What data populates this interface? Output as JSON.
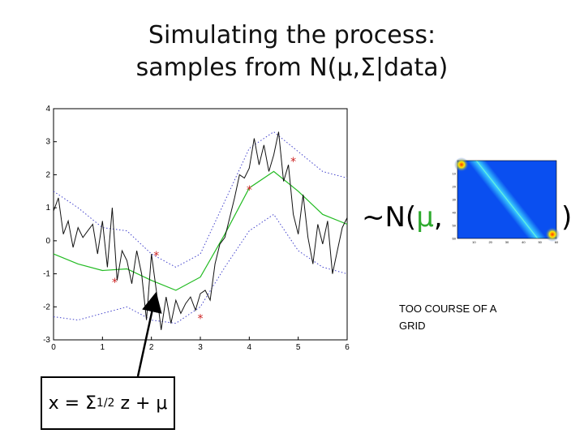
{
  "title": {
    "line1": "Simulating the process:",
    "line2": "samples from N(μ,Σ|data)"
  },
  "distribution": {
    "prefix": "~N(",
    "mu": "μ",
    "comma": ",",
    "close": ")"
  },
  "note": "TOO COURSE OF A GRID",
  "formula": {
    "lhs": "x = Σ",
    "exp": "1/2",
    "rhs": " z + μ"
  },
  "colors": {
    "mean": "#22bb22",
    "bounds": "#4444cc",
    "sample": "#111111",
    "points": "#cc2222",
    "mu_text": "#2eaa2e"
  },
  "chart_data": [
    {
      "type": "line",
      "xlim": [
        0,
        6
      ],
      "ylim": [
        -3,
        4
      ],
      "xticks": [
        0,
        1,
        2,
        3,
        4,
        5,
        6
      ],
      "yticks": [
        -3,
        -2,
        -1,
        0,
        1,
        2,
        3,
        4
      ],
      "grid": false,
      "series": [
        {
          "role": "mean",
          "style": "solid",
          "x": [
            0,
            0.5,
            1,
            1.5,
            2,
            2.5,
            3,
            3.5,
            4,
            4.5,
            5,
            5.5,
            6
          ],
          "y": [
            -0.4,
            -0.7,
            -0.9,
            -0.85,
            -1.2,
            -1.5,
            -1.1,
            0.2,
            1.6,
            2.1,
            1.5,
            0.8,
            0.5
          ]
        },
        {
          "role": "upper",
          "style": "dotted",
          "x": [
            0,
            0.5,
            1,
            1.5,
            2,
            2.5,
            3,
            3.5,
            4,
            4.5,
            5,
            5.5,
            6
          ],
          "y": [
            1.5,
            1.0,
            0.4,
            0.3,
            -0.4,
            -0.8,
            -0.4,
            1.2,
            2.8,
            3.3,
            2.7,
            2.1,
            1.9
          ]
        },
        {
          "role": "lower",
          "style": "dotted",
          "x": [
            0,
            0.5,
            1,
            1.5,
            2,
            2.5,
            3,
            3.5,
            4,
            4.5,
            5,
            5.5,
            6
          ],
          "y": [
            -2.3,
            -2.4,
            -2.2,
            -2.0,
            -2.4,
            -2.5,
            -2.0,
            -0.8,
            0.3,
            0.8,
            -0.3,
            -0.8,
            -1.0
          ]
        },
        {
          "role": "sample",
          "style": "solid",
          "x": [
            0,
            0.1,
            0.2,
            0.3,
            0.4,
            0.5,
            0.6,
            0.7,
            0.8,
            0.9,
            1.0,
            1.1,
            1.2,
            1.3,
            1.4,
            1.5,
            1.6,
            1.7,
            1.8,
            1.9,
            2.0,
            2.1,
            2.2,
            2.3,
            2.4,
            2.5,
            2.6,
            2.7,
            2.8,
            2.9,
            3.0,
            3.1,
            3.2,
            3.3,
            3.4,
            3.5,
            3.6,
            3.7,
            3.8,
            3.9,
            4.0,
            4.1,
            4.2,
            4.3,
            4.4,
            4.5,
            4.6,
            4.7,
            4.8,
            4.9,
            5.0,
            5.1,
            5.2,
            5.3,
            5.4,
            5.5,
            5.6,
            5.7,
            5.8,
            5.9,
            6.0
          ],
          "y": [
            0.9,
            1.3,
            0.2,
            0.6,
            -0.2,
            0.4,
            0.1,
            0.3,
            0.5,
            -0.4,
            0.6,
            -0.8,
            1.0,
            -1.2,
            -0.3,
            -0.6,
            -1.3,
            -0.3,
            -1.0,
            -2.4,
            -0.4,
            -1.5,
            -2.7,
            -1.7,
            -2.5,
            -1.8,
            -2.2,
            -1.9,
            -1.7,
            -2.1,
            -1.6,
            -1.5,
            -1.8,
            -0.7,
            -0.1,
            0.1,
            0.7,
            1.3,
            2.0,
            1.9,
            2.2,
            3.1,
            2.3,
            2.9,
            2.1,
            2.6,
            3.3,
            1.8,
            2.3,
            0.8,
            0.2,
            1.4,
            0.1,
            -0.7,
            0.5,
            -0.1,
            0.6,
            -1.0,
            -0.3,
            0.4,
            0.7
          ]
        },
        {
          "role": "observations",
          "style": "markers",
          "x": [
            1.25,
            2.1,
            3.0,
            4.0,
            4.9
          ],
          "y": [
            -1.25,
            -0.45,
            -2.35,
            1.55,
            2.4
          ]
        }
      ]
    },
    {
      "type": "heatmap",
      "xticks": [
        10,
        20,
        30,
        40,
        50,
        60
      ],
      "yticks": [
        10,
        20,
        30,
        40,
        50,
        60
      ],
      "xlim": [
        0,
        60
      ],
      "ylim": [
        0,
        60
      ]
    }
  ]
}
